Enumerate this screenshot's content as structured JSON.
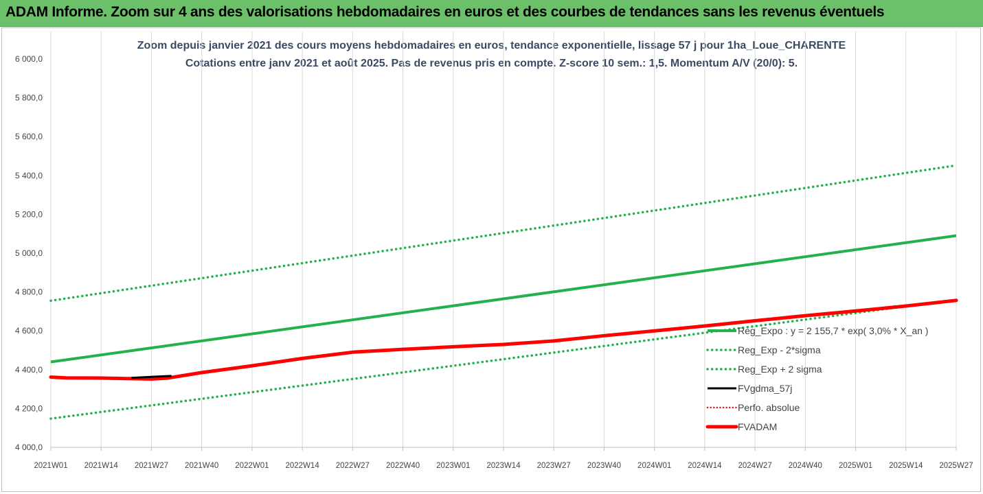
{
  "header": {
    "title": "ADAM Informe. Zoom sur 4 ans des valorisations hebdomadaires en euros et des courbes de tendances sans les revenus éventuels"
  },
  "chart_data": {
    "type": "line",
    "title": "Zoom depuis janvier 2021 des cours moyens hebdomadaires en euros, tendance exponentielle, lissage 57 j pour 1ha_Loue_CHARENTE",
    "subtitle": "Cotations entre janv 2021 et août 2025.  Pas de revenus pris en compte. Z-score 10 sem.: 1,5. Momentum A/V (20/0): 5.",
    "xlabel": "",
    "ylabel": "",
    "ylim": [
      4000,
      6000
    ],
    "yticks": [
      "4 000,0",
      "4 200,0",
      "4 400,0",
      "4 600,0",
      "4 800,0",
      "5 000,0",
      "5 200,0",
      "5 400,0",
      "5 600,0",
      "5 800,0",
      "6 000,0"
    ],
    "xticks": [
      "2021W01",
      "2021W14",
      "2021W27",
      "2021W40",
      "2022W01",
      "2022W14",
      "2022W27",
      "2022W40",
      "2023W01",
      "2023W14",
      "2023W27",
      "2023W40",
      "2024W01",
      "2024W14",
      "2024W27",
      "2024W40",
      "2025W01",
      "2025W14",
      "2025W27"
    ],
    "grid": "vertical",
    "legend_position": "right",
    "series": [
      {
        "name": "Reg_Expo : y = 2 155,7 * exp( 3,0% *  X_an )",
        "color": "#22b14c",
        "style": "solid",
        "x": [
          0,
          18
        ],
        "y": [
          4440,
          5090
        ]
      },
      {
        "name": "Reg_Exp - 2*sigma",
        "color": "#22b14c",
        "style": "dotted",
        "x": [
          0,
          18
        ],
        "y": [
          4148,
          4760
        ]
      },
      {
        "name": "Reg_Exp + 2 sigma",
        "color": "#22b14c",
        "style": "dotted",
        "x": [
          0,
          18
        ],
        "y": [
          4755,
          5452
        ]
      },
      {
        "name": "FVgdma_57j",
        "color": "#000000",
        "style": "solid",
        "x": [
          1.6,
          2.0,
          2.4
        ],
        "y": [
          4358,
          4363,
          4368
        ]
      },
      {
        "name": "Perfo. absolue",
        "color": "#e31a1c",
        "style": "dotted",
        "x": [],
        "y": []
      },
      {
        "name": "FVADAM",
        "color": "#ff0000",
        "style": "thick",
        "x": [
          0,
          0.3,
          1.0,
          1.5,
          2.0,
          2.3,
          3.0,
          4.0,
          5.0,
          6.0,
          7.0,
          8.0,
          9.0,
          10.0,
          11.0,
          12.0,
          13.0,
          14.0,
          15.0,
          16.0,
          17.0,
          18.0
        ],
        "y": [
          4362,
          4358,
          4357,
          4354,
          4352,
          4356,
          4385,
          4420,
          4458,
          4490,
          4505,
          4518,
          4530,
          4548,
          4575,
          4600,
          4625,
          4652,
          4678,
          4702,
          4728,
          4757
        ]
      }
    ]
  }
}
